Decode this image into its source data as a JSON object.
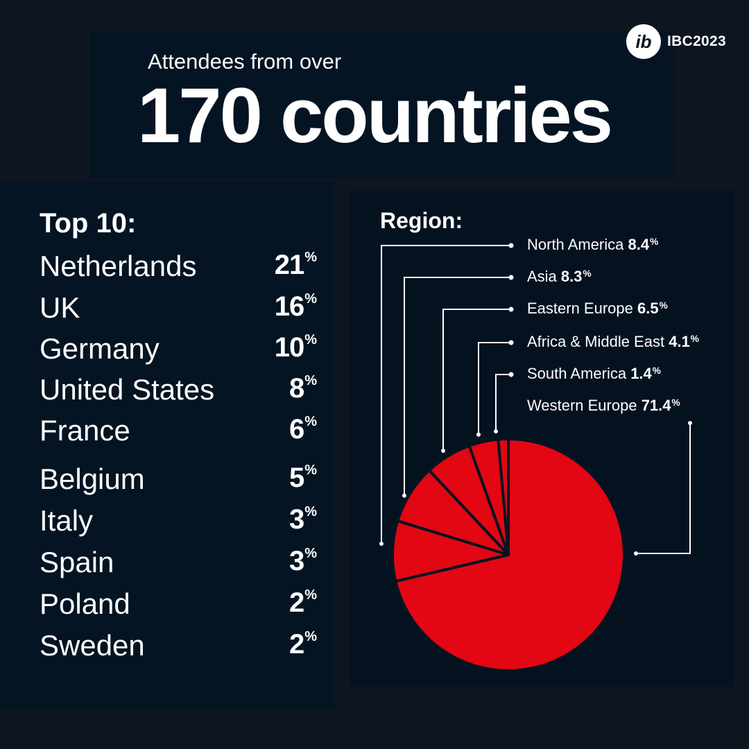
{
  "brand": {
    "logo_mark": "ib",
    "name": "IBC2023"
  },
  "header": {
    "subtitle": "Attendees from over",
    "headline": "170 countries"
  },
  "top10": {
    "heading": "Top 10:",
    "items": [
      {
        "country": "Netherlands",
        "value": "21",
        "unit": "%"
      },
      {
        "country": "UK",
        "value": "16",
        "unit": "%"
      },
      {
        "country": "Germany",
        "value": "10",
        "unit": "%"
      },
      {
        "country": "United States",
        "value": "8",
        "unit": "%"
      },
      {
        "country": "France",
        "value": "6",
        "unit": "%"
      },
      {
        "country": "Belgium",
        "value": "5",
        "unit": "%"
      },
      {
        "country": "Italy",
        "value": "3",
        "unit": "%"
      },
      {
        "country": "Spain",
        "value": "3",
        "unit": "%"
      },
      {
        "country": "Poland",
        "value": "2",
        "unit": "%"
      },
      {
        "country": "Sweden",
        "value": "2",
        "unit": "%"
      }
    ]
  },
  "region": {
    "heading": "Region:",
    "items": [
      {
        "name": "North America",
        "value": "8.4",
        "unit": "%"
      },
      {
        "name": "Asia",
        "value": "8.3",
        "unit": "%"
      },
      {
        "name": "Eastern Europe",
        "value": "6.5",
        "unit": "%"
      },
      {
        "name": "Africa & Middle East",
        "value": "4.1",
        "unit": "%"
      },
      {
        "name": "South America",
        "value": "1.4",
        "unit": "%"
      },
      {
        "name": "Western Europe",
        "value": "71.4",
        "unit": "%"
      }
    ]
  },
  "colors": {
    "background": "#0c1520",
    "panel": "#051422",
    "pie_fill": "#e30613",
    "slice_divider": "#051422",
    "text": "#ffffff"
  },
  "chart_data": {
    "type": "pie",
    "title": "Region:",
    "categories": [
      "North America",
      "Asia",
      "Eastern Europe",
      "Africa & Middle East",
      "South America",
      "Western Europe"
    ],
    "values": [
      8.4,
      8.3,
      6.5,
      4.1,
      1.4,
      71.4
    ],
    "unit": "%"
  }
}
